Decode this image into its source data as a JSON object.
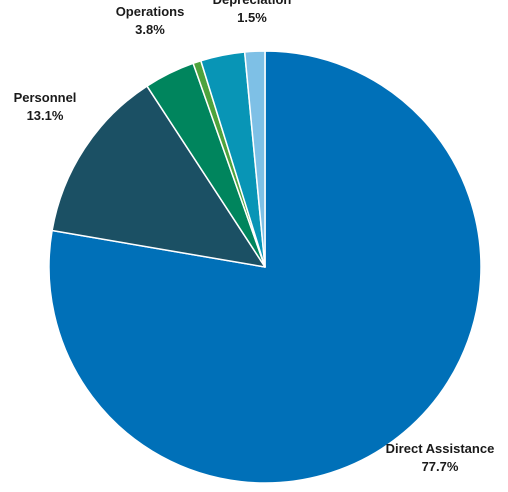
{
  "chart_data": {
    "type": "pie",
    "slices": [
      {
        "label": "Direct Assistance",
        "value": 77.7,
        "value_label": "77.7%",
        "color": "#0070b8"
      },
      {
        "label": "Personnel",
        "value": 13.1,
        "value_label": "13.1%",
        "color": "#1b5064"
      },
      {
        "label": "Operations",
        "value": 3.8,
        "value_label": "3.8%",
        "color": "#00855d"
      },
      {
        "label": "",
        "value": 0.6,
        "value_label": "",
        "color": "#4ea33d"
      },
      {
        "label": "",
        "value": 3.3,
        "value_label": "",
        "color": "#0895b6"
      },
      {
        "label": "Depreciation",
        "value": 1.5,
        "value_label": "1.5%",
        "color": "#7ec0e6"
      }
    ],
    "start_angle": "12 o'clock",
    "direction": "clockwise, largest slice first",
    "legend": "none",
    "data_labels": "outside, name above percentage"
  }
}
